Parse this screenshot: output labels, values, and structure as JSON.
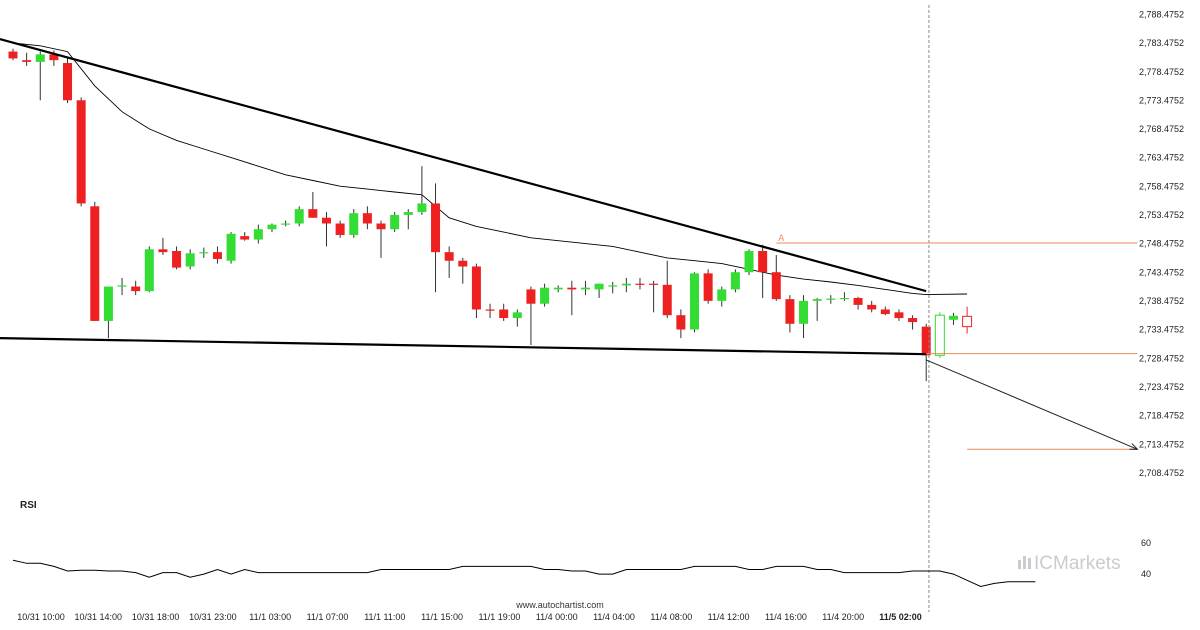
{
  "brand": {
    "logo_text": "ICMarkets",
    "credit": "www.autochartist.com",
    "logo_icon": "bar-chart-icon"
  },
  "colors": {
    "up": "#33dd33",
    "down": "#ee2020",
    "trendline": "#000000",
    "level": "#e8895a",
    "ma": "#000000",
    "rsi": "#000000",
    "grid_label": "#222222"
  },
  "chart_data": {
    "type": "candlestick",
    "y_ticks": [
      "2,788.4752",
      "2,783.4752",
      "2,778.4752",
      "2,773.4752",
      "2,768.4752",
      "2,763.4752",
      "2,758.4752",
      "2,753.4752",
      "2,748.4752",
      "2,743.4752",
      "2,738.4752",
      "2,733.4752",
      "2,728.4752",
      "2,723.4752",
      "2,718.4752",
      "2,713.4752",
      "2,708.4752"
    ],
    "ylim": [
      2705.5,
      2789.6
    ],
    "x_ticks": [
      "10/31 10:00",
      "10/31 14:00",
      "10/31 18:00",
      "10/31 23:00",
      "11/1 03:00",
      "11/1 07:00",
      "11/1 11:00",
      "11/1 15:00",
      "11/1 19:00",
      "11/4 00:00",
      "11/4 04:00",
      "11/4 08:00",
      "11/4 12:00",
      "11/4 16:00",
      "11/4 20:00",
      "11/5 02:00"
    ],
    "x_tick_emphasis": "11/5 02:00",
    "candles": [
      [
        2782.0,
        2782.5,
        2780.5,
        2780.8
      ],
      [
        2780.5,
        2781.8,
        2779.5,
        2780.2
      ],
      [
        2780.2,
        2782.0,
        2773.5,
        2781.5
      ],
      [
        2781.5,
        2782.2,
        2779.5,
        2780.5
      ],
      [
        2780.0,
        2781.0,
        2773.0,
        2773.5
      ],
      [
        2773.5,
        2774.0,
        2755.0,
        2755.5
      ],
      [
        2755.0,
        2755.8,
        2735.0,
        2735.0
      ],
      [
        2735.0,
        2741.0,
        2732.0,
        2741.0
      ],
      [
        2741.0,
        2742.5,
        2739.5,
        2741.2
      ],
      [
        2741.0,
        2742.0,
        2739.5,
        2740.2
      ],
      [
        2740.2,
        2748.0,
        2740.0,
        2747.5
      ],
      [
        2747.5,
        2749.5,
        2746.5,
        2747.0
      ],
      [
        2747.2,
        2748.0,
        2744.0,
        2744.3
      ],
      [
        2744.5,
        2747.5,
        2744.0,
        2746.8
      ],
      [
        2746.8,
        2747.8,
        2746.0,
        2747.0
      ],
      [
        2747.0,
        2748.0,
        2745.0,
        2745.8
      ],
      [
        2745.5,
        2750.5,
        2745.0,
        2750.2
      ],
      [
        2749.8,
        2750.5,
        2749.0,
        2749.2
      ],
      [
        2749.2,
        2751.8,
        2748.5,
        2751.0
      ],
      [
        2751.0,
        2752.0,
        2750.5,
        2751.8
      ],
      [
        2751.8,
        2752.5,
        2751.5,
        2752.0
      ],
      [
        2752.0,
        2755.0,
        2751.5,
        2754.5
      ],
      [
        2754.5,
        2757.5,
        2753.0,
        2753.0
      ],
      [
        2753.0,
        2754.0,
        2748.0,
        2752.0
      ],
      [
        2752.0,
        2752.5,
        2749.5,
        2750.0
      ],
      [
        2750.0,
        2754.5,
        2749.5,
        2753.8
      ],
      [
        2753.8,
        2755.0,
        2751.0,
        2752.0
      ],
      [
        2752.0,
        2752.5,
        2746.0,
        2751.0
      ],
      [
        2751.0,
        2754.0,
        2750.5,
        2753.5
      ],
      [
        2753.5,
        2754.5,
        2751.0,
        2754.0
      ],
      [
        2754.0,
        2762.0,
        2753.5,
        2755.5
      ],
      [
        2755.5,
        2759.0,
        2740.0,
        2747.0
      ],
      [
        2747.0,
        2748.0,
        2742.5,
        2745.5
      ],
      [
        2745.5,
        2746.0,
        2741.5,
        2744.5
      ],
      [
        2744.5,
        2745.0,
        2735.5,
        2737.0
      ],
      [
        2737.0,
        2738.0,
        2735.5,
        2736.8
      ],
      [
        2737.0,
        2738.0,
        2735.0,
        2735.5
      ],
      [
        2735.5,
        2737.0,
        2734.0,
        2736.5
      ],
      [
        2740.5,
        2741.0,
        2730.8,
        2738.0
      ],
      [
        2738.0,
        2741.5,
        2737.5,
        2740.8
      ],
      [
        2740.5,
        2741.2,
        2740.0,
        2740.8
      ],
      [
        2740.8,
        2742.0,
        2736.0,
        2740.5
      ],
      [
        2740.5,
        2742.0,
        2739.5,
        2740.8
      ],
      [
        2740.5,
        2741.5,
        2739.0,
        2741.5
      ],
      [
        2741.0,
        2741.8,
        2739.8,
        2741.2
      ],
      [
        2741.2,
        2742.5,
        2740.0,
        2741.5
      ],
      [
        2741.5,
        2742.5,
        2740.5,
        2741.4
      ],
      [
        2741.5,
        2742.0,
        2736.5,
        2741.3
      ],
      [
        2741.3,
        2745.5,
        2735.5,
        2736.0
      ],
      [
        2736.0,
        2737.0,
        2732.0,
        2733.5
      ],
      [
        2733.5,
        2743.5,
        2733.0,
        2743.3
      ],
      [
        2743.3,
        2744.0,
        2738.0,
        2738.5
      ],
      [
        2738.5,
        2741.0,
        2737.5,
        2740.5
      ],
      [
        2740.5,
        2744.0,
        2740.0,
        2743.5
      ],
      [
        2743.5,
        2747.5,
        2743.0,
        2747.2
      ],
      [
        2747.2,
        2748.3,
        2739.0,
        2743.5
      ],
      [
        2743.5,
        2746.5,
        2738.5,
        2738.8
      ],
      [
        2738.8,
        2739.5,
        2733.0,
        2734.5
      ],
      [
        2734.5,
        2739.5,
        2732.0,
        2738.5
      ],
      [
        2738.5,
        2739.0,
        2735.0,
        2738.8
      ],
      [
        2738.8,
        2739.5,
        2738.0,
        2738.9
      ],
      [
        2739.0,
        2740.0,
        2738.5,
        2739.0
      ],
      [
        2739.0,
        2739.2,
        2737.0,
        2737.8
      ],
      [
        2737.8,
        2738.5,
        2736.5,
        2737.0
      ],
      [
        2737.0,
        2737.5,
        2736.0,
        2736.2
      ],
      [
        2736.5,
        2737.0,
        2735.0,
        2735.5
      ],
      [
        2735.5,
        2736.0,
        2733.5,
        2734.8
      ],
      [
        2734.0,
        2734.5,
        2724.5,
        2729.0
      ],
      [
        2729.0,
        2736.5,
        2728.5,
        2736.0
      ],
      [
        2735.2,
        2736.4,
        2734.3,
        2735.9
      ],
      [
        2735.8,
        2737.5,
        2732.8,
        2734.0
      ]
    ],
    "hollow_candles": [
      68,
      70
    ],
    "moving_average": [
      [
        0,
        2783.5
      ],
      [
        2,
        2783.0
      ],
      [
        4,
        2782.0
      ],
      [
        6,
        2776.0
      ],
      [
        8,
        2771.5
      ],
      [
        10,
        2768.5
      ],
      [
        12,
        2766.5
      ],
      [
        14,
        2765.0
      ],
      [
        16,
        2763.5
      ],
      [
        18,
        2762.0
      ],
      [
        20,
        2760.5
      ],
      [
        22,
        2759.5
      ],
      [
        24,
        2758.5
      ],
      [
        26,
        2758.0
      ],
      [
        28,
        2757.5
      ],
      [
        30,
        2757.0
      ],
      [
        31,
        2755.0
      ],
      [
        32,
        2753.0
      ],
      [
        34,
        2751.5
      ],
      [
        36,
        2750.5
      ],
      [
        38,
        2749.5
      ],
      [
        40,
        2749.0
      ],
      [
        42,
        2748.5
      ],
      [
        44,
        2748.0
      ],
      [
        46,
        2747.0
      ],
      [
        48,
        2746.0
      ],
      [
        50,
        2745.5
      ],
      [
        52,
        2745.0
      ],
      [
        54,
        2744.0
      ],
      [
        56,
        2743.0
      ],
      [
        58,
        2742.3
      ],
      [
        60,
        2741.8
      ],
      [
        62,
        2741.2
      ],
      [
        64,
        2740.5
      ],
      [
        66,
        2739.8
      ],
      [
        67,
        2739.6
      ],
      [
        70,
        2739.7
      ]
    ],
    "trendlines": {
      "resistance": {
        "from": [
          -1.0,
          2784.2
        ],
        "to": [
          67.0,
          2740.2
        ]
      },
      "support": {
        "from": [
          -1.0,
          2732.0
        ],
        "to": [
          67.0,
          2729.2
        ]
      }
    },
    "projection": {
      "from": [
        67.0,
        2728.2
      ],
      "to": [
        82.5,
        2712.6
      ]
    },
    "levels": [
      {
        "value": 2748.6,
        "from": 56.0,
        "to": 82.5,
        "label": "A"
      },
      {
        "value": 2729.3,
        "from": 67.0,
        "to": 82.5
      },
      {
        "value": 2712.6,
        "from": 70.0,
        "to": 82.5
      }
    ],
    "current_time_index": 67.2,
    "indicator": {
      "name": "RSI",
      "y_ticks": [
        "60",
        "40"
      ],
      "ylim": [
        20,
        77
      ],
      "values": [
        49,
        47,
        47,
        45,
        42,
        42.5,
        42.5,
        42,
        42,
        41,
        38,
        41,
        41,
        38,
        40,
        43,
        40,
        43,
        41,
        41,
        41,
        41,
        41,
        41,
        41,
        41,
        41,
        43,
        43,
        43,
        43,
        43,
        43,
        45,
        45,
        45,
        45,
        45,
        45,
        43,
        43,
        42,
        42,
        40,
        40,
        43,
        43,
        43,
        43,
        43,
        45,
        45,
        45,
        45,
        43,
        43,
        45,
        45,
        45,
        43,
        43,
        41,
        41,
        41,
        41,
        41,
        42,
        42,
        42,
        40,
        36,
        32,
        34,
        35,
        35,
        35
      ]
    }
  }
}
